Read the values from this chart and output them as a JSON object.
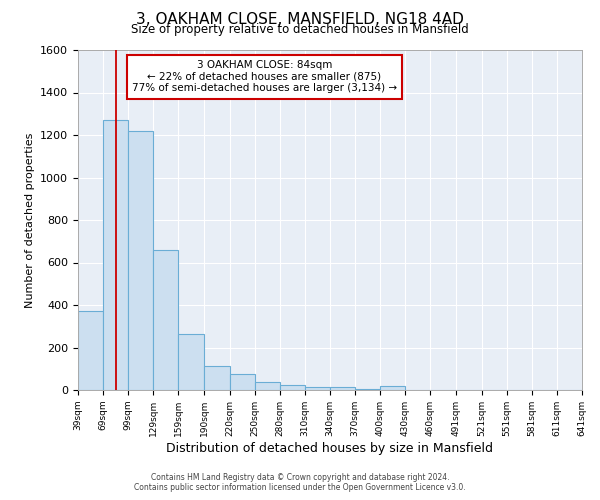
{
  "title": "3, OAKHAM CLOSE, MANSFIELD, NG18 4AD",
  "subtitle": "Size of property relative to detached houses in Mansfield",
  "xlabel": "Distribution of detached houses by size in Mansfield",
  "ylabel": "Number of detached properties",
  "bar_color": "#ccdff0",
  "bar_edge_color": "#6aadd5",
  "background_color": "#e8eef6",
  "grid_color": "#ffffff",
  "bin_edges": [
    39,
    69,
    99,
    129,
    159,
    190,
    220,
    250,
    280,
    310,
    340,
    370,
    400,
    430,
    460,
    491,
    521,
    551,
    581,
    611,
    641
  ],
  "bar_heights": [
    370,
    1270,
    1220,
    660,
    265,
    115,
    75,
    40,
    25,
    15,
    15,
    5,
    20,
    0,
    0,
    0,
    0,
    0,
    0,
    0
  ],
  "ylim": [
    0,
    1600
  ],
  "yticks": [
    0,
    200,
    400,
    600,
    800,
    1000,
    1200,
    1400,
    1600
  ],
  "property_size": 84,
  "property_line_color": "#cc0000",
  "annotation_line1": "3 OAKHAM CLOSE: 84sqm",
  "annotation_line2": "← 22% of detached houses are smaller (875)",
  "annotation_line3": "77% of semi-detached houses are larger (3,134) →",
  "annotation_box_color": "#ffffff",
  "annotation_box_edge": "#cc0000",
  "footer1": "Contains HM Land Registry data © Crown copyright and database right 2024.",
  "footer2": "Contains public sector information licensed under the Open Government Licence v3.0."
}
